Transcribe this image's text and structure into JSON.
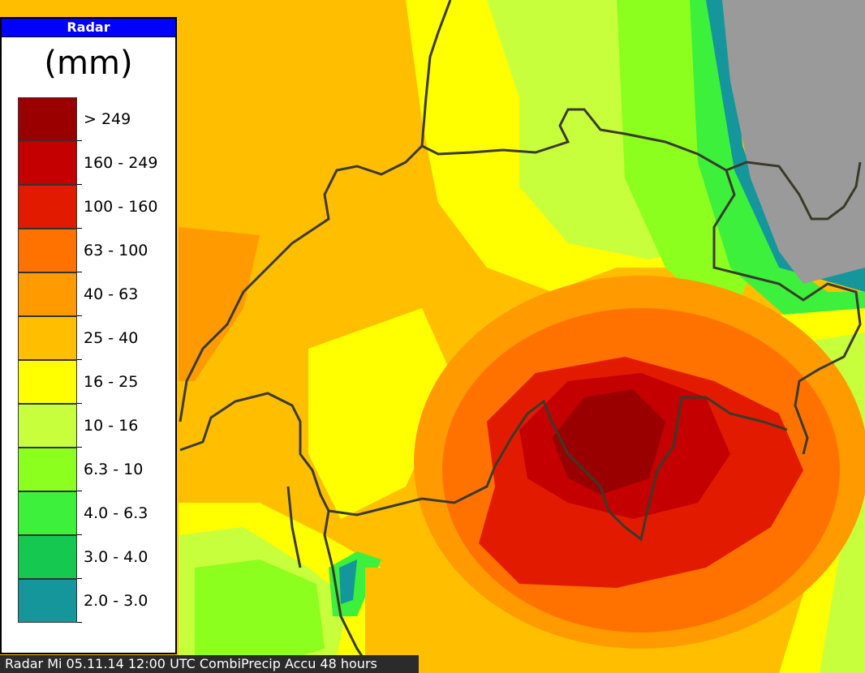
{
  "legend": {
    "title": "Radar",
    "unit": "(mm)",
    "classes": [
      {
        "label": "> 249",
        "color": "#9b0000"
      },
      {
        "label": "160 - 249",
        "color": "#c40000"
      },
      {
        "label": "100 - 160",
        "color": "#e21b00"
      },
      {
        "label": "63 - 100",
        "color": "#ff7200"
      },
      {
        "label": "40 - 63",
        "color": "#ff9a00"
      },
      {
        "label": "25 - 40",
        "color": "#ffbe00"
      },
      {
        "label": "16 - 25",
        "color": "#ffff00"
      },
      {
        "label": "10 - 16",
        "color": "#c8ff3c"
      },
      {
        "label": "6.3 - 10",
        "color": "#8cff1e"
      },
      {
        "label": "4.0 - 6.3",
        "color": "#3cf03c"
      },
      {
        "label": "3.0 - 4.0",
        "color": "#14c850"
      },
      {
        "label": "2.0 - 3.0",
        "color": "#14969b"
      }
    ]
  },
  "footer": {
    "text": "Radar   Mi 05.11.14 12:00 UTC  CombiPrecip Accu 48 hours"
  }
}
